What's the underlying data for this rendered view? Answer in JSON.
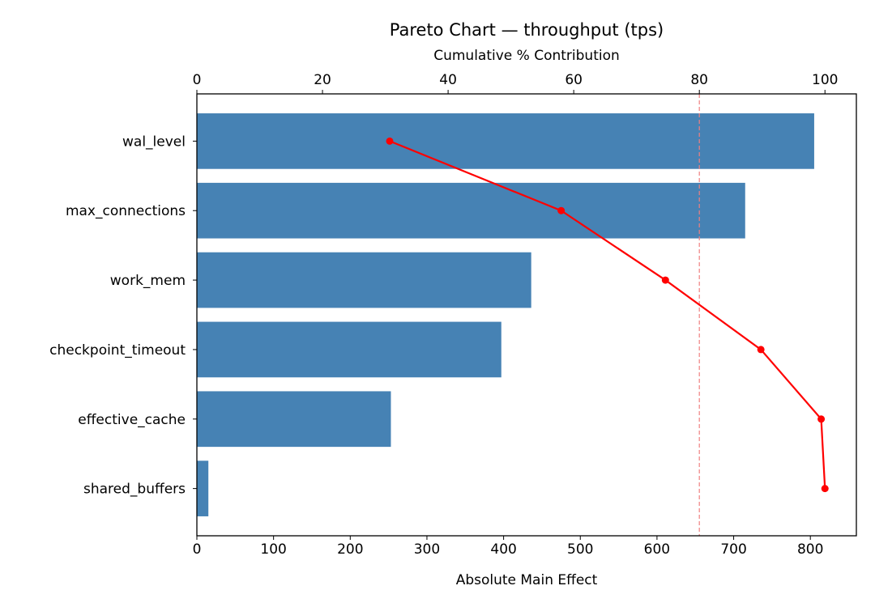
{
  "chart_data": {
    "type": "bar",
    "orientation": "horizontal",
    "title": "Pareto Chart — throughput (tps)",
    "xlabel": "Absolute Main Effect",
    "x2label": "Cumulative % Contribution",
    "categories": [
      "wal_level",
      "max_connections",
      "work_mem",
      "checkpoint_timeout",
      "effective_cache",
      "shared_buffers"
    ],
    "series": [
      {
        "name": "Absolute Main Effect",
        "type": "bar",
        "color": "#4682b4",
        "values": [
          805,
          715,
          436,
          397,
          253,
          15
        ]
      },
      {
        "name": "Cumulative %",
        "type": "line",
        "color": "#ff0000",
        "values": [
          30.7,
          58.0,
          74.6,
          89.8,
          99.4,
          100.0
        ]
      }
    ],
    "xlim": [
      0,
      860
    ],
    "x2lim": [
      0,
      105
    ],
    "xticks": [
      0,
      100,
      200,
      300,
      400,
      500,
      600,
      700,
      800
    ],
    "x2ticks": [
      0,
      20,
      40,
      60,
      80,
      100
    ],
    "threshold": {
      "value": 80,
      "axis": "cumulative",
      "style": "dashed",
      "color": "#f08080"
    },
    "grid": false,
    "legend": "none"
  }
}
